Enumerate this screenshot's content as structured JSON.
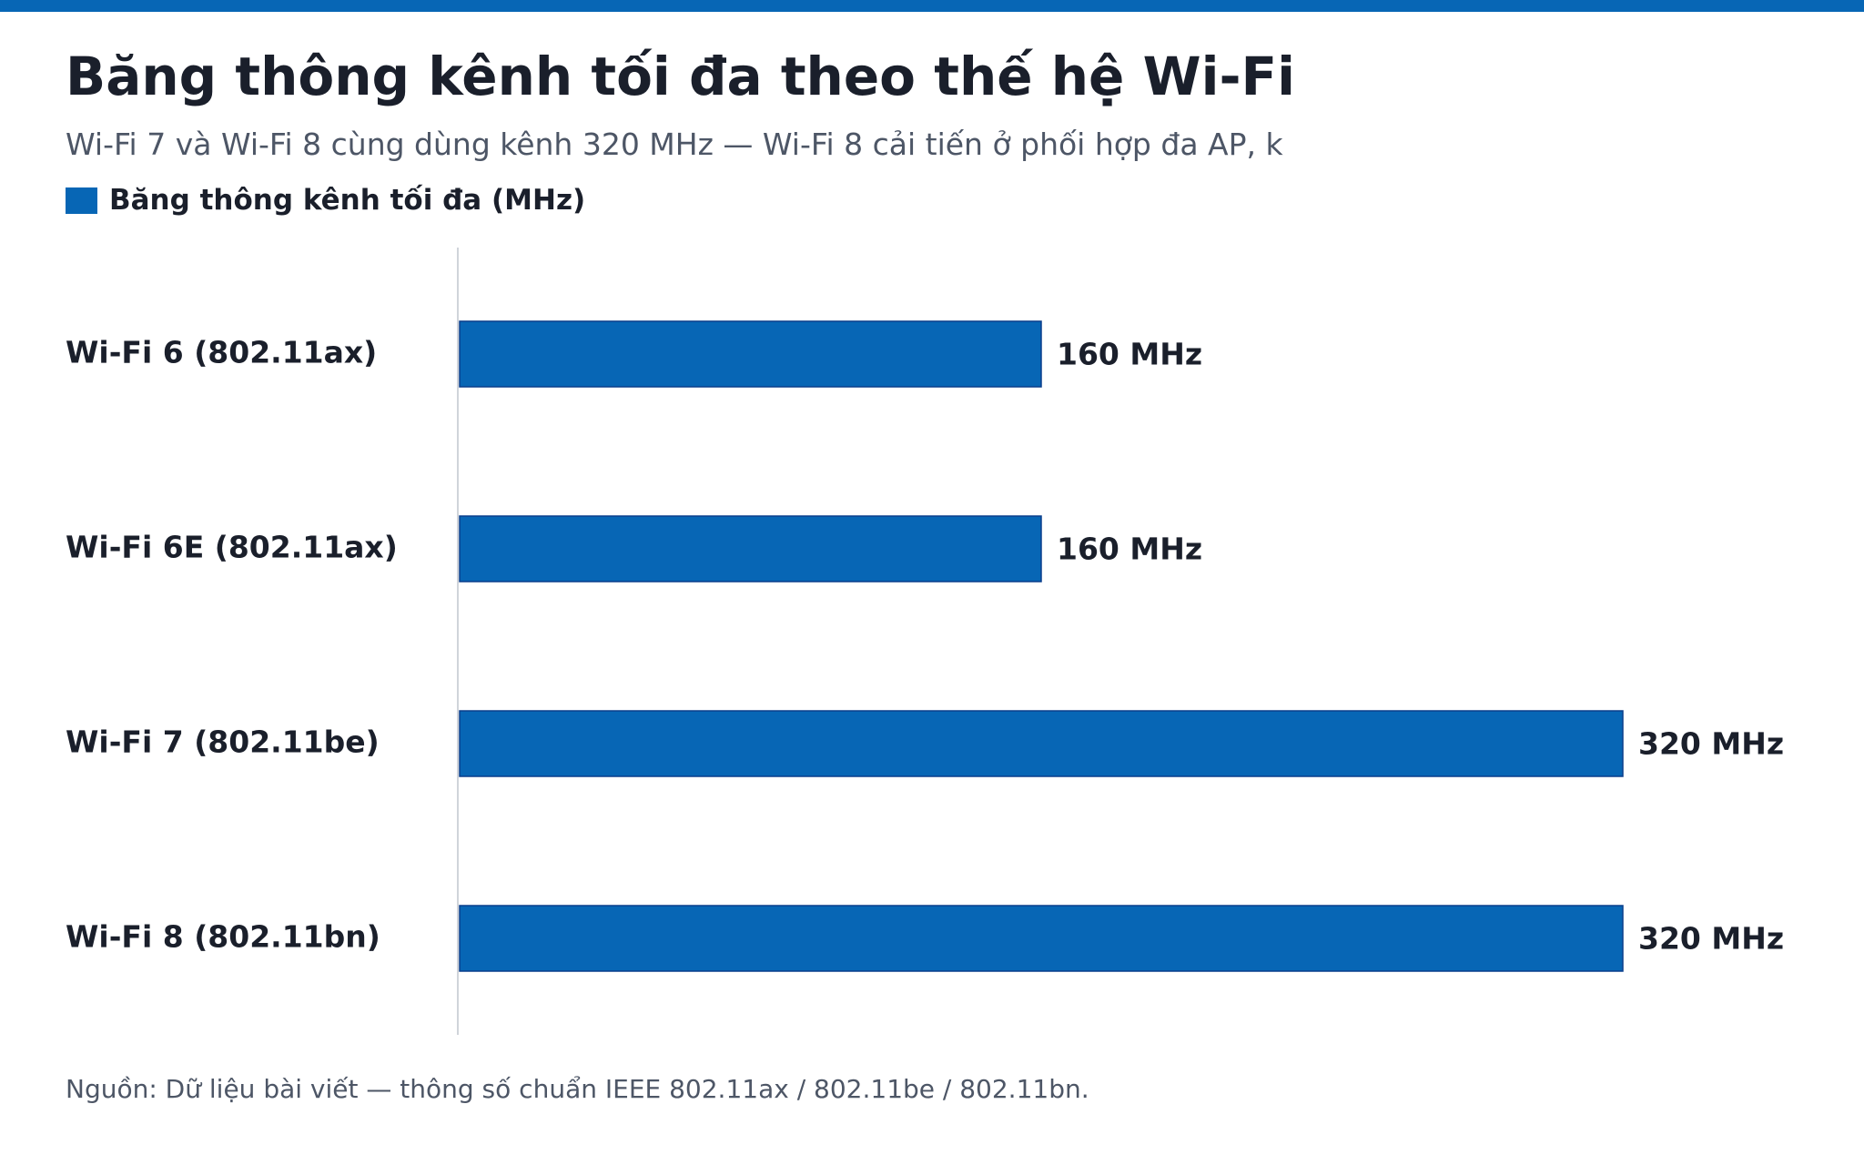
{
  "colors": {
    "accent": "#0766b5",
    "bar_stroke": "#0a3e8c",
    "axis": "#d0d4da"
  },
  "chart_data": {
    "type": "bar",
    "orientation": "horizontal",
    "title": "Băng thông kênh tối đa theo thế hệ Wi-Fi",
    "subtitle": "Wi-Fi 7 và Wi-Fi 8 cùng dùng kênh 320 MHz — Wi-Fi 8 cải tiến ở phối hợp đa AP, k",
    "categories": [
      "Wi-Fi 6 (802.11ax)",
      "Wi-Fi 6E (802.11ax)",
      "Wi-Fi 7 (802.11be)",
      "Wi-Fi 8 (802.11bn)"
    ],
    "series": [
      {
        "name": "Băng thông kênh tối đa (MHz)",
        "values": [
          160,
          160,
          320,
          320
        ],
        "data_labels": [
          "160 MHz",
          "160 MHz",
          "320 MHz",
          "320 MHz"
        ]
      }
    ],
    "xlim": [
      0,
      320
    ],
    "grid": false,
    "legend_position": "top-left",
    "source": "Nguồn: Dữ liệu bài viết — thông số chuẩn IEEE 802.11ax / 802.11be / 802.11bn."
  }
}
